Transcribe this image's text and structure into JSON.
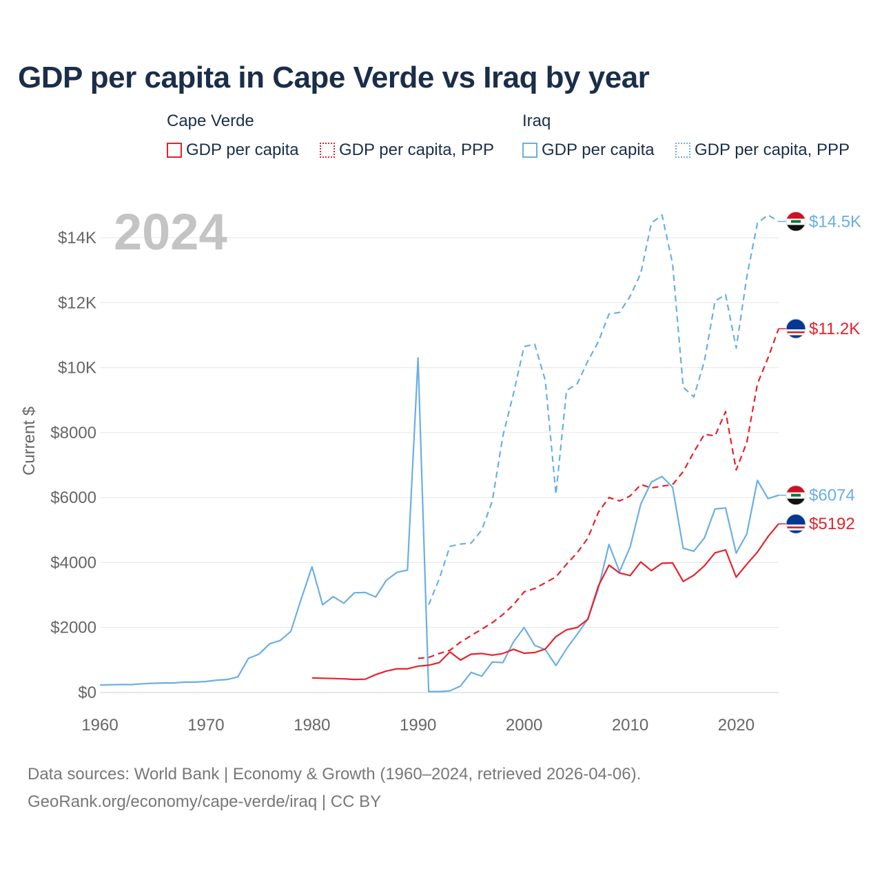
{
  "title": "GDP per capita in Cape Verde vs Iraq by year",
  "legend": {
    "groups": [
      {
        "name": "Cape Verde",
        "items": [
          "GDP per capita",
          "GDP per capita, PPP"
        ]
      },
      {
        "name": "Iraq",
        "items": [
          "GDP per capita",
          "GDP per capita, PPP"
        ]
      }
    ]
  },
  "colors": {
    "cape_verde": "#e8202a",
    "iraq": "#6aaee6",
    "grid": "#e6e6e6",
    "axis_text": "#666666",
    "watermark": "#c4c4c4"
  },
  "footer": {
    "line1": "Data sources: World Bank | Economy & Growth (1960–2024, retrieved 2026-04-06).",
    "line2": "GeoRank.org/economy/cape-verde/iraq | CC BY"
  },
  "chart_data": {
    "type": "line",
    "year_label": "2024",
    "ylabel": "Current $",
    "xlabel": "",
    "xlim": [
      1960,
      2024
    ],
    "ylim": [
      0,
      15000
    ],
    "x_ticks": [
      1960,
      1970,
      1980,
      1990,
      2000,
      2010,
      2020
    ],
    "x_tick_labels": [
      "1960",
      "1970",
      "1980",
      "1990",
      "2000",
      "2010",
      "2020"
    ],
    "y_ticks": [
      0,
      2000,
      4000,
      6000,
      8000,
      10000,
      12000,
      14000
    ],
    "y_tick_labels": [
      "$0",
      "$2000",
      "$4000",
      "$6000",
      "$8000",
      "$10K",
      "$12K",
      "$14K"
    ],
    "grid": true,
    "series": [
      {
        "name": "Iraq GDP per capita, PPP",
        "country": "Iraq",
        "color": "#6aaee6",
        "dash": true,
        "end_label": "$14.5K",
        "flag": "iraq-flag-icon",
        "x": [
          1991,
          1992,
          1993,
          1994,
          1995,
          1996,
          1997,
          1998,
          1999,
          2000,
          2001,
          2002,
          2003,
          2004,
          2005,
          2006,
          2007,
          2008,
          2009,
          2010,
          2011,
          2012,
          2013,
          2014,
          2015,
          2016,
          2017,
          2018,
          2019,
          2020,
          2021,
          2022,
          2023,
          2024
        ],
        "values": [
          2700,
          3500,
          4500,
          4570,
          4600,
          5000,
          5900,
          7900,
          9200,
          10650,
          10720,
          9600,
          6100,
          9300,
          9500,
          10200,
          10800,
          11650,
          11700,
          12200,
          12900,
          14450,
          14700,
          13200,
          9400,
          9100,
          10200,
          12050,
          12250,
          10600,
          12800,
          14450,
          14700,
          14500
        ]
      },
      {
        "name": "Cape Verde GDP per capita, PPP",
        "country": "Cape Verde",
        "color": "#e8202a",
        "dash": true,
        "end_label": "$11.2K",
        "flag": "cape-verde-flag-icon",
        "x": [
          1990,
          1991,
          1992,
          1993,
          1994,
          1995,
          1996,
          1997,
          1998,
          1999,
          2000,
          2001,
          2002,
          2003,
          2004,
          2005,
          2006,
          2007,
          2008,
          2009,
          2010,
          2011,
          2012,
          2013,
          2014,
          2015,
          2016,
          2017,
          2018,
          2019,
          2020,
          2021,
          2022,
          2023,
          2024
        ],
        "values": [
          1050,
          1080,
          1200,
          1300,
          1550,
          1750,
          1950,
          2150,
          2400,
          2700,
          3100,
          3200,
          3380,
          3560,
          3950,
          4300,
          4750,
          5550,
          6000,
          5900,
          6050,
          6400,
          6300,
          6350,
          6400,
          6800,
          7400,
          7950,
          7900,
          8650,
          6850,
          7700,
          9500,
          10300,
          11200
        ]
      },
      {
        "name": "Iraq GDP per capita",
        "country": "Iraq",
        "color": "#6aaee6",
        "dash": false,
        "end_label": "$6074",
        "flag": "iraq-flag-icon",
        "x": [
          1960,
          1961,
          1962,
          1963,
          1964,
          1965,
          1966,
          1967,
          1968,
          1969,
          1970,
          1971,
          1972,
          1973,
          1974,
          1975,
          1976,
          1977,
          1978,
          1979,
          1980,
          1981,
          1982,
          1983,
          1984,
          1985,
          1986,
          1987,
          1988,
          1989,
          1990,
          1991,
          1992,
          1993,
          1994,
          1995,
          1996,
          1997,
          1998,
          1999,
          2000,
          2001,
          2002,
          2003,
          2004,
          2005,
          2006,
          2007,
          2008,
          2009,
          2010,
          2011,
          2012,
          2013,
          2014,
          2015,
          2016,
          2017,
          2018,
          2019,
          2020,
          2021,
          2022,
          2023,
          2024
        ],
        "values": [
          230,
          240,
          245,
          245,
          270,
          285,
          295,
          295,
          320,
          320,
          340,
          380,
          400,
          480,
          1050,
          1180,
          1500,
          1600,
          1880,
          2900,
          3870,
          2700,
          2950,
          2750,
          3070,
          3080,
          2940,
          3450,
          3700,
          3770,
          10300,
          30,
          30,
          50,
          200,
          620,
          500,
          940,
          920,
          1560,
          2000,
          1450,
          1320,
          830,
          1350,
          1790,
          2260,
          3200,
          4560,
          3720,
          4480,
          5800,
          6480,
          6650,
          6320,
          4440,
          4350,
          4760,
          5650,
          5680,
          4290,
          4880,
          6530,
          5970,
          6074
        ]
      },
      {
        "name": "Cape Verde GDP per capita",
        "country": "Cape Verde",
        "color": "#e8202a",
        "dash": false,
        "end_label": "$5192",
        "flag": "cape-verde-flag-icon",
        "x": [
          1980,
          1981,
          1982,
          1983,
          1984,
          1985,
          1986,
          1987,
          1988,
          1989,
          1990,
          1991,
          1992,
          1993,
          1994,
          1995,
          1996,
          1997,
          1998,
          1999,
          2000,
          2001,
          2002,
          2003,
          2004,
          2005,
          2006,
          2007,
          2008,
          2009,
          2010,
          2011,
          2012,
          2013,
          2014,
          2015,
          2016,
          2017,
          2018,
          2019,
          2020,
          2021,
          2022,
          2023,
          2024
        ],
        "values": [
          450,
          440,
          430,
          420,
          400,
          410,
          550,
          660,
          730,
          730,
          810,
          840,
          920,
          1250,
          1000,
          1180,
          1200,
          1150,
          1200,
          1330,
          1210,
          1230,
          1340,
          1720,
          1930,
          2000,
          2250,
          3280,
          3920,
          3680,
          3600,
          4020,
          3750,
          3980,
          3990,
          3420,
          3610,
          3900,
          4300,
          4390,
          3550,
          3950,
          4320,
          4800,
          5192
        ]
      }
    ]
  }
}
